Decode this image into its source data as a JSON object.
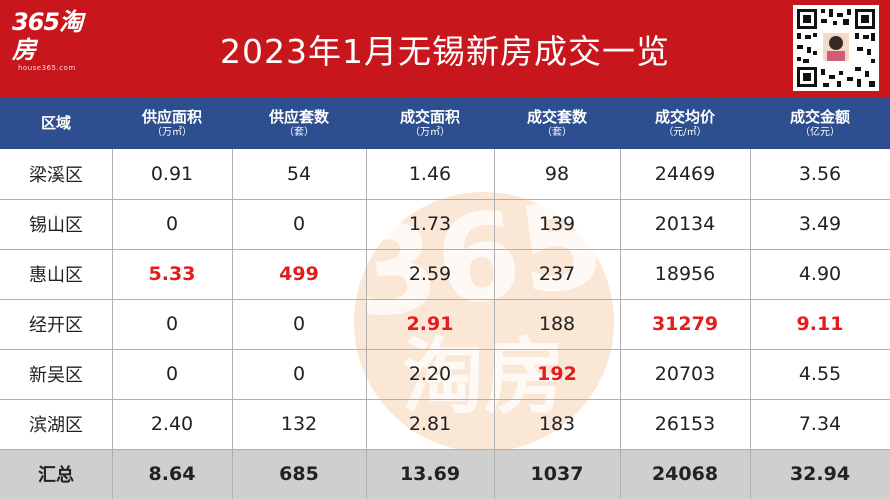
{
  "banner": {
    "logo_text": "365淘房",
    "logo_sub": "house365.com",
    "title": "2023年1月无锡新房成交一览"
  },
  "watermark": {
    "line1": "365",
    "line2": "淘房"
  },
  "colors": {
    "banner_red": "#c8161d",
    "header_blue": "#2e4f8f",
    "highlight_red": "#e31c1c",
    "total_gray": "#cfcfcf"
  },
  "table": {
    "headers": [
      {
        "label": "区域",
        "unit": ""
      },
      {
        "label": "供应面积",
        "unit": "（万㎡）"
      },
      {
        "label": "供应套数",
        "unit": "（套）"
      },
      {
        "label": "成交面积",
        "unit": "（万㎡）"
      },
      {
        "label": "成交套数",
        "unit": "（套）"
      },
      {
        "label": "成交均价",
        "unit": "（元/㎡）"
      },
      {
        "label": "成交金额",
        "unit": "（亿元）"
      }
    ],
    "rows": [
      [
        "梁溪区",
        "0.91",
        "54",
        "1.46",
        "98",
        "24469",
        "3.56"
      ],
      [
        "锡山区",
        "0",
        "0",
        "1.73",
        "139",
        "20134",
        "3.49"
      ],
      [
        "惠山区",
        "5.33",
        "499",
        "2.59",
        "237",
        "18956",
        "4.90"
      ],
      [
        "经开区",
        "0",
        "0",
        "2.91",
        "188",
        "31279",
        "9.11"
      ],
      [
        "新吴区",
        "0",
        "0",
        "2.20",
        "192",
        "20703",
        "4.55"
      ],
      [
        "滨湖区",
        "2.40",
        "132",
        "2.81",
        "183",
        "26153",
        "7.34"
      ]
    ],
    "total": [
      "汇总",
      "8.64",
      "685",
      "13.69",
      "1037",
      "24068",
      "32.94"
    ]
  }
}
